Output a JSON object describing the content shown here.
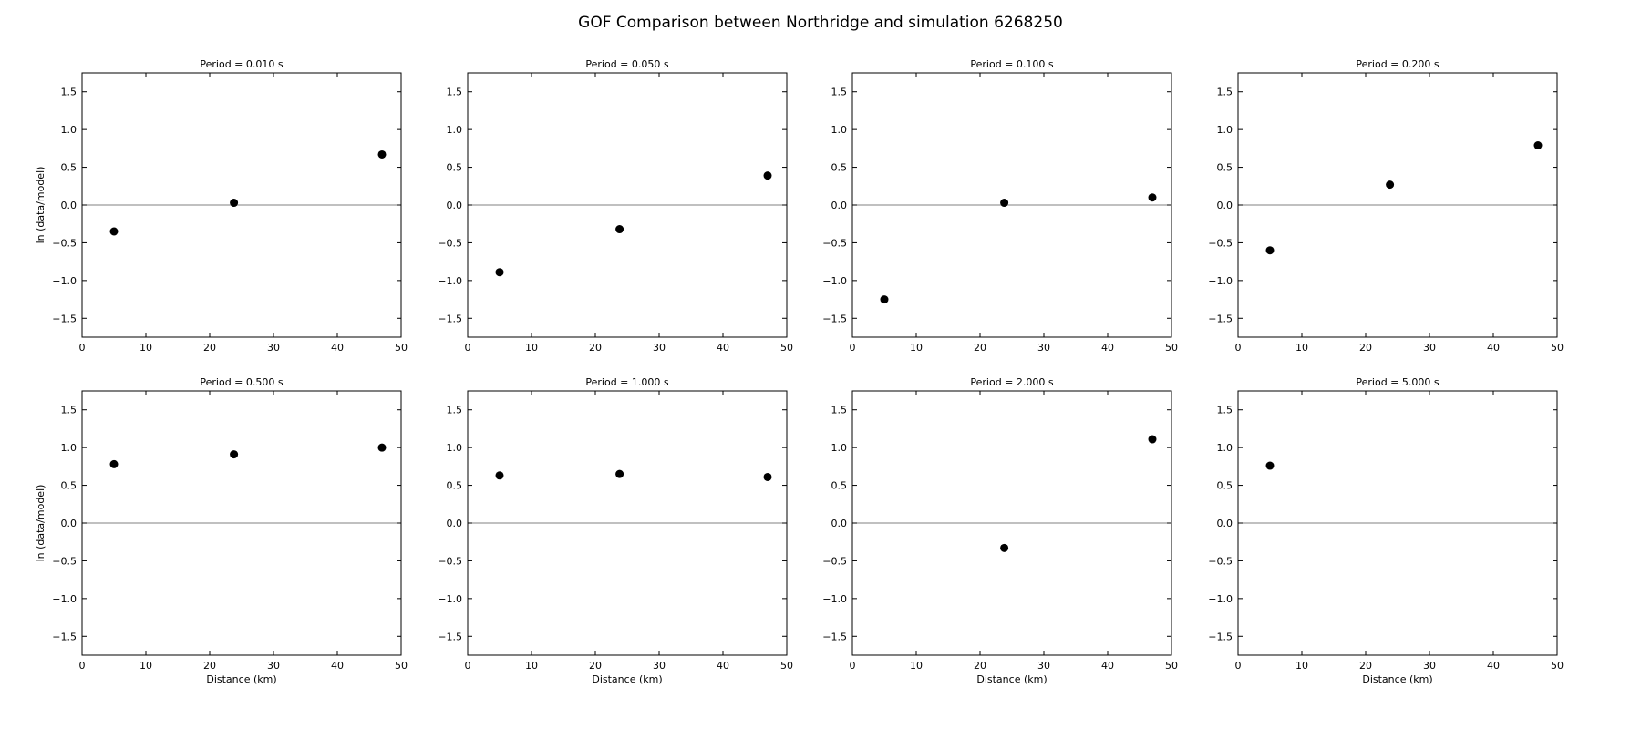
{
  "figure": {
    "title": "GOF Comparison between Northridge and simulation 6268250"
  },
  "chart_data": [
    {
      "type": "scatter",
      "title": "Period = 0.010 s",
      "xlabel": "",
      "ylabel": "ln (data/model)",
      "xlim": [
        0,
        50
      ],
      "ylim": [
        -1.75,
        1.75
      ],
      "xticks": [
        0,
        10,
        20,
        30,
        40,
        50
      ],
      "yticks": [
        -1.5,
        -1.0,
        -0.5,
        0.0,
        0.5,
        1.0,
        1.5
      ],
      "reference_line_y": 0.0,
      "x": [
        5.0,
        23.8,
        47.0
      ],
      "y": [
        -0.35,
        0.03,
        0.67
      ]
    },
    {
      "type": "scatter",
      "title": "Period = 0.050 s",
      "xlabel": "",
      "ylabel": "",
      "xlim": [
        0,
        50
      ],
      "ylim": [
        -1.75,
        1.75
      ],
      "xticks": [
        0,
        10,
        20,
        30,
        40,
        50
      ],
      "yticks": [
        -1.5,
        -1.0,
        -0.5,
        0.0,
        0.5,
        1.0,
        1.5
      ],
      "reference_line_y": 0.0,
      "x": [
        5.0,
        23.8,
        47.0
      ],
      "y": [
        -0.89,
        -0.32,
        0.39
      ]
    },
    {
      "type": "scatter",
      "title": "Period = 0.100 s",
      "xlabel": "",
      "ylabel": "",
      "xlim": [
        0,
        50
      ],
      "ylim": [
        -1.75,
        1.75
      ],
      "xticks": [
        0,
        10,
        20,
        30,
        40,
        50
      ],
      "yticks": [
        -1.5,
        -1.0,
        -0.5,
        0.0,
        0.5,
        1.0,
        1.5
      ],
      "reference_line_y": 0.0,
      "x": [
        5.0,
        23.8,
        47.0
      ],
      "y": [
        -1.25,
        0.03,
        0.1
      ]
    },
    {
      "type": "scatter",
      "title": "Period = 0.200 s",
      "xlabel": "",
      "ylabel": "",
      "xlim": [
        0,
        50
      ],
      "ylim": [
        -1.75,
        1.75
      ],
      "xticks": [
        0,
        10,
        20,
        30,
        40,
        50
      ],
      "yticks": [
        -1.5,
        -1.0,
        -0.5,
        0.0,
        0.5,
        1.0,
        1.5
      ],
      "reference_line_y": 0.0,
      "x": [
        5.0,
        23.8,
        47.0
      ],
      "y": [
        -0.6,
        0.27,
        0.79
      ]
    },
    {
      "type": "scatter",
      "title": "Period = 0.500 s",
      "xlabel": "Distance (km)",
      "ylabel": "ln (data/model)",
      "xlim": [
        0,
        50
      ],
      "ylim": [
        -1.75,
        1.75
      ],
      "xticks": [
        0,
        10,
        20,
        30,
        40,
        50
      ],
      "yticks": [
        -1.5,
        -1.0,
        -0.5,
        0.0,
        0.5,
        1.0,
        1.5
      ],
      "reference_line_y": 0.0,
      "x": [
        5.0,
        23.8,
        47.0
      ],
      "y": [
        0.78,
        0.91,
        1.0
      ]
    },
    {
      "type": "scatter",
      "title": "Period = 1.000 s",
      "xlabel": "Distance (km)",
      "ylabel": "",
      "xlim": [
        0,
        50
      ],
      "ylim": [
        -1.75,
        1.75
      ],
      "xticks": [
        0,
        10,
        20,
        30,
        40,
        50
      ],
      "yticks": [
        -1.5,
        -1.0,
        -0.5,
        0.0,
        0.5,
        1.0,
        1.5
      ],
      "reference_line_y": 0.0,
      "x": [
        5.0,
        23.8,
        47.0
      ],
      "y": [
        0.63,
        0.65,
        0.61
      ]
    },
    {
      "type": "scatter",
      "title": "Period = 2.000 s",
      "xlabel": "Distance (km)",
      "ylabel": "",
      "xlim": [
        0,
        50
      ],
      "ylim": [
        -1.75,
        1.75
      ],
      "xticks": [
        0,
        10,
        20,
        30,
        40,
        50
      ],
      "yticks": [
        -1.5,
        -1.0,
        -0.5,
        0.0,
        0.5,
        1.0,
        1.5
      ],
      "reference_line_y": 0.0,
      "x": [
        23.8,
        47.0
      ],
      "y": [
        -0.33,
        1.11
      ]
    },
    {
      "type": "scatter",
      "title": "Period = 5.000 s",
      "xlabel": "Distance (km)",
      "ylabel": "",
      "xlim": [
        0,
        50
      ],
      "ylim": [
        -1.75,
        1.75
      ],
      "xticks": [
        0,
        10,
        20,
        30,
        40,
        50
      ],
      "yticks": [
        -1.5,
        -1.0,
        -0.5,
        0.0,
        0.5,
        1.0,
        1.5
      ],
      "reference_line_y": 0.0,
      "x": [
        5.0
      ],
      "y": [
        0.76
      ]
    }
  ]
}
